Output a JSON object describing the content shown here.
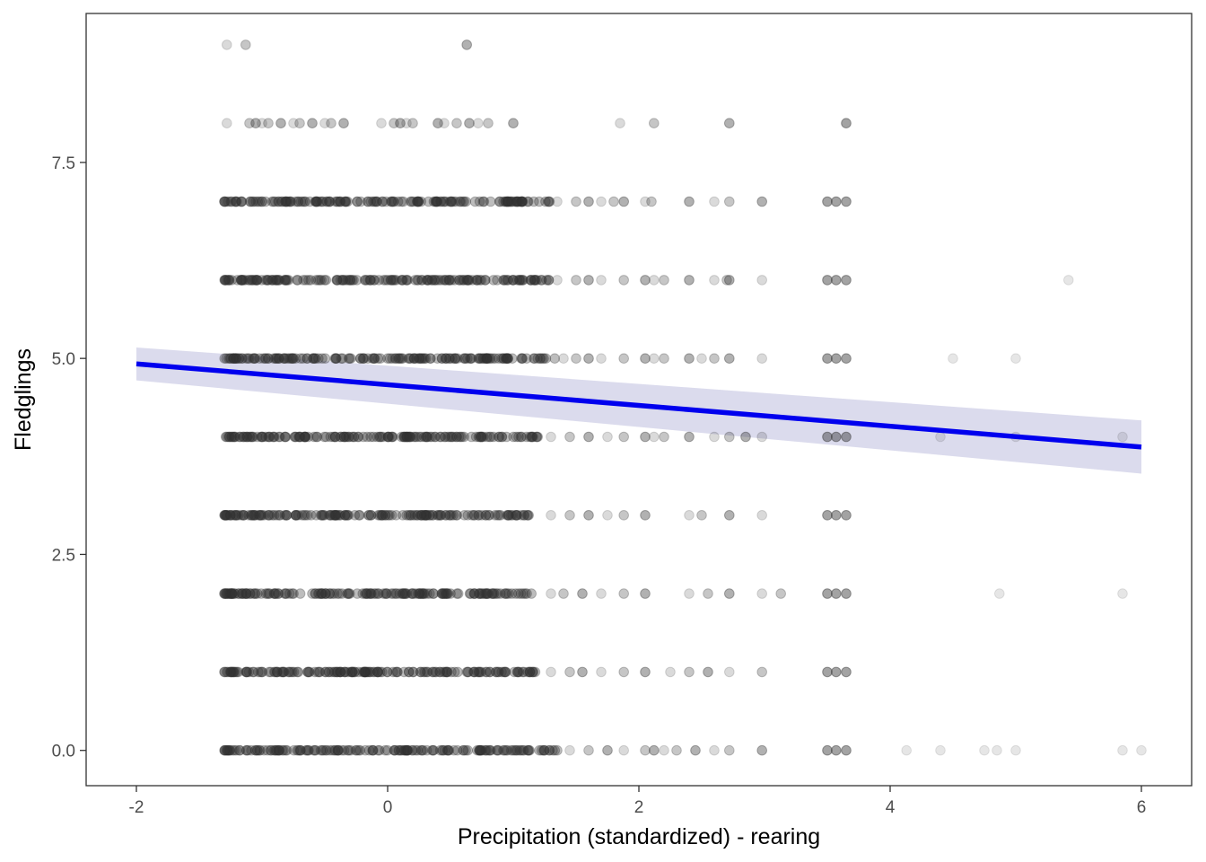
{
  "chart_data": {
    "type": "scatter",
    "title": "",
    "xlabel": "Precipitation (standardized) - rearing",
    "ylabel": "Fledglings",
    "xlim": [
      -2.4,
      6.4
    ],
    "ylim": [
      -0.45,
      9.4
    ],
    "x_ticks": [
      -2,
      0,
      2,
      4,
      6
    ],
    "x_tick_labels": [
      "-2",
      "0",
      "2",
      "4",
      "6"
    ],
    "y_ticks": [
      0,
      2.5,
      5,
      7.5
    ],
    "y_tick_labels": [
      "0.0",
      "2.5",
      "5.0",
      "7.5"
    ],
    "grid": false,
    "legend": "none",
    "colors": {
      "points": "#333333",
      "fit_line": "#0000ee",
      "confidence_band": "#9999cc",
      "panel_border": "#333333"
    },
    "point_groups": [
      {
        "y": 9,
        "dense_x_range": null,
        "sparse_x": [
          -1.28,
          -1.13,
          0.63
        ]
      },
      {
        "y": 8,
        "dense_x_range": null,
        "sparse_x": [
          -1.28,
          -1.1,
          -1.05,
          -1.0,
          -0.95,
          -0.85,
          -0.75,
          -0.7,
          -0.6,
          -0.5,
          -0.45,
          -0.35,
          -0.05,
          0.05,
          0.1,
          0.15,
          0.2,
          0.4,
          0.45,
          0.55,
          0.65,
          0.72,
          0.8,
          1.0,
          1.85,
          2.12,
          2.72,
          3.65
        ]
      },
      {
        "y": 7,
        "dense_x_range": [
          -1.3,
          1.3
        ],
        "sparse_x": [
          1.35,
          1.5,
          1.6,
          1.7,
          1.8,
          1.88,
          2.05,
          2.1,
          2.4,
          2.6,
          2.72,
          2.98,
          3.5,
          3.57,
          3.65
        ]
      },
      {
        "y": 6,
        "dense_x_range": [
          -1.3,
          1.3
        ],
        "sparse_x": [
          1.35,
          1.5,
          1.6,
          1.7,
          1.88,
          2.05,
          2.12,
          2.2,
          2.4,
          2.6,
          2.7,
          2.72,
          2.98,
          3.5,
          3.57,
          3.65,
          5.42
        ]
      },
      {
        "y": 5,
        "dense_x_range": [
          -1.3,
          1.35
        ],
        "sparse_x": [
          1.4,
          1.5,
          1.6,
          1.7,
          1.88,
          2.05,
          2.12,
          2.2,
          2.4,
          2.5,
          2.6,
          2.72,
          2.98,
          3.5,
          3.57,
          3.65,
          4.5,
          5.0
        ]
      },
      {
        "y": 4,
        "dense_x_range": [
          -1.3,
          1.2
        ],
        "sparse_x": [
          1.3,
          1.45,
          1.6,
          1.75,
          1.88,
          2.05,
          2.12,
          2.2,
          2.4,
          2.6,
          2.72,
          2.85,
          2.98,
          3.5,
          3.57,
          3.65,
          4.4,
          5.0,
          5.85
        ]
      },
      {
        "y": 3,
        "dense_x_range": [
          -1.3,
          1.2
        ],
        "sparse_x": [
          1.3,
          1.45,
          1.6,
          1.75,
          1.88,
          2.05,
          2.4,
          2.5,
          2.72,
          2.98,
          3.5,
          3.57,
          3.65
        ]
      },
      {
        "y": 2,
        "dense_x_range": [
          -1.3,
          1.2
        ],
        "sparse_x": [
          1.3,
          1.4,
          1.55,
          1.7,
          1.88,
          2.05,
          2.4,
          2.55,
          2.72,
          2.98,
          3.13,
          3.5,
          3.57,
          3.65,
          4.87,
          5.85
        ]
      },
      {
        "y": 1,
        "dense_x_range": [
          -1.3,
          1.2
        ],
        "sparse_x": [
          1.3,
          1.45,
          1.55,
          1.7,
          1.88,
          2.05,
          2.25,
          2.4,
          2.55,
          2.72,
          2.98,
          3.5,
          3.57,
          3.65
        ]
      },
      {
        "y": 0,
        "dense_x_range": [
          -1.3,
          1.35
        ],
        "sparse_x": [
          1.45,
          1.6,
          1.75,
          1.88,
          2.05,
          2.12,
          2.2,
          2.3,
          2.45,
          2.6,
          2.72,
          2.98,
          3.5,
          3.57,
          3.65,
          4.13,
          4.4,
          4.75,
          4.85,
          5.0,
          5.85,
          6.0
        ]
      }
    ],
    "fit": {
      "x": [
        -2,
        6
      ],
      "y": [
        4.93,
        3.87
      ],
      "ci_lower": [
        4.72,
        3.53
      ],
      "ci_upper": [
        5.14,
        4.21
      ]
    }
  }
}
